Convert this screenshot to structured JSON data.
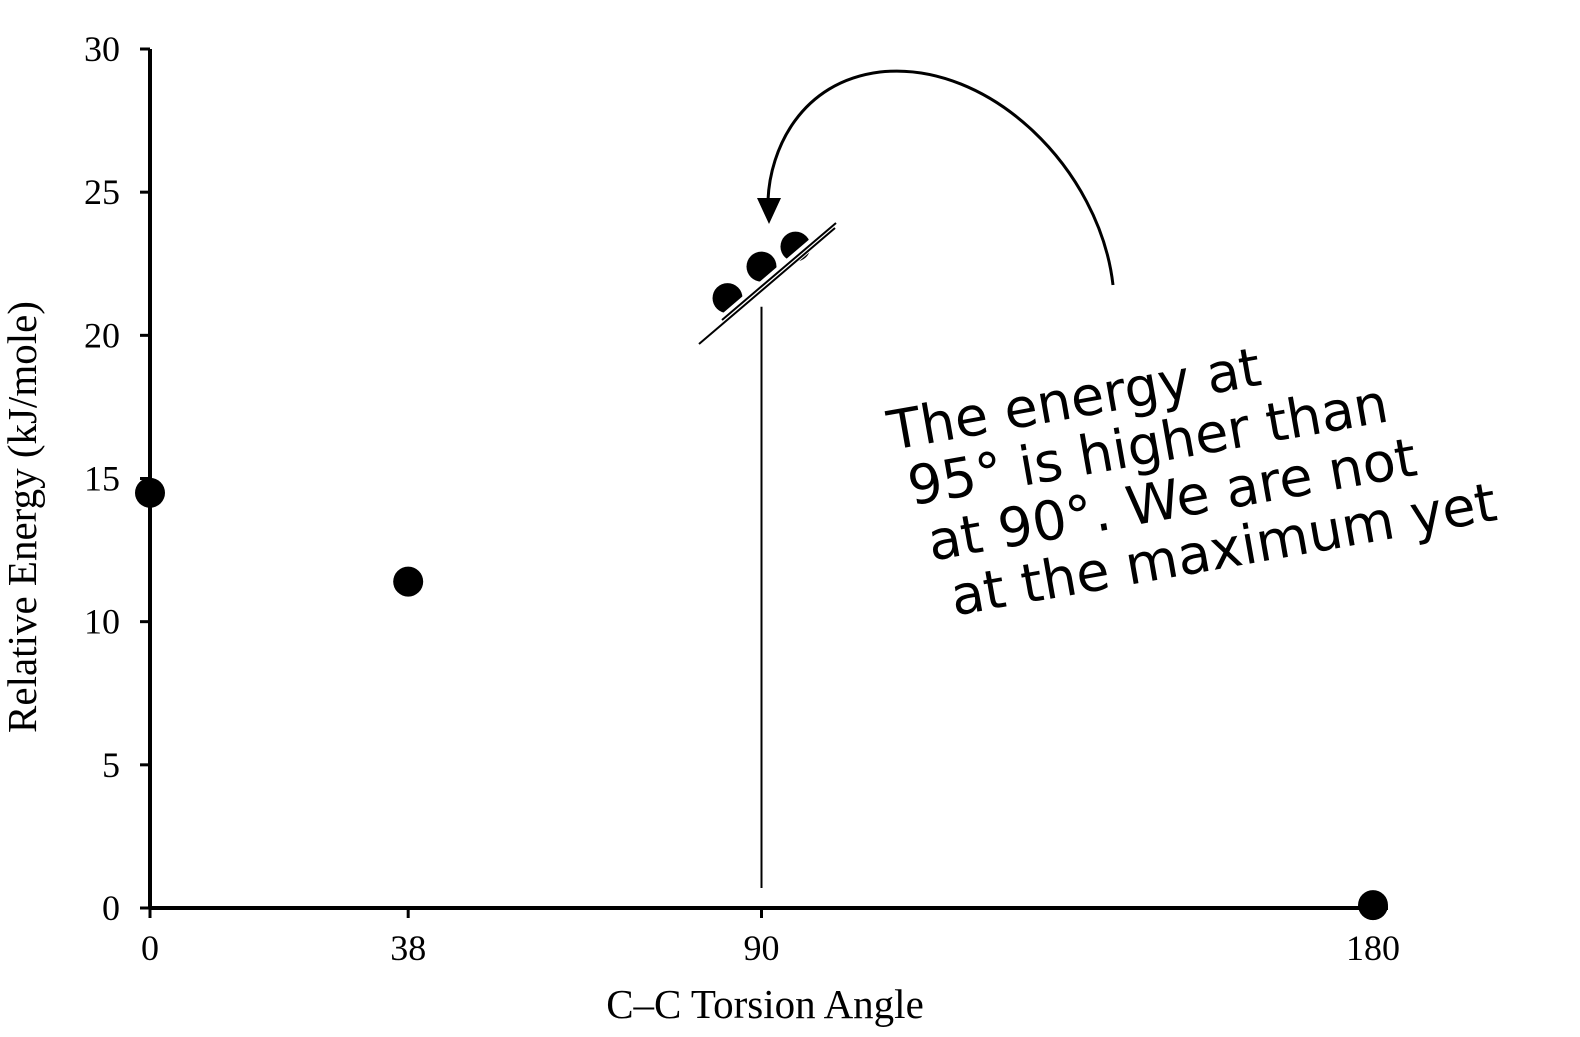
{
  "chart_data": {
    "type": "scatter",
    "title": "",
    "xlabel": "C–C Torsion Angle",
    "ylabel": "Relative Energy (kJ/mole)",
    "xlim": [
      0,
      180
    ],
    "ylim": [
      0,
      30
    ],
    "x_ticks": [
      0,
      38,
      90,
      180
    ],
    "x_tick_labels": [
      "0",
      "38",
      "90",
      "180"
    ],
    "y_ticks": [
      0,
      5,
      10,
      15,
      20,
      25,
      30
    ],
    "y_tick_labels": [
      "0",
      "5",
      "10",
      "15",
      "20",
      "25",
      "30"
    ],
    "grid": false,
    "legend": "none",
    "axis_break": "y-axis between approximately 1 and 21 at x = 90",
    "points": [
      {
        "x": 0,
        "y": 14.5
      },
      {
        "x": 38,
        "y": 11.4
      },
      {
        "x": 85,
        "y": 21.3
      },
      {
        "x": 90,
        "y": 22.4
      },
      {
        "x": 95,
        "y": 23.1
      },
      {
        "x": 180,
        "y": 0.1
      }
    ],
    "annotation": {
      "lines": [
        "The energy at",
        "95° is higher than",
        "at 90°. We are not",
        "at the maximum yet"
      ]
    },
    "colors": {
      "points": "#000000",
      "axes": "#000000",
      "background": "#ffffff"
    }
  }
}
